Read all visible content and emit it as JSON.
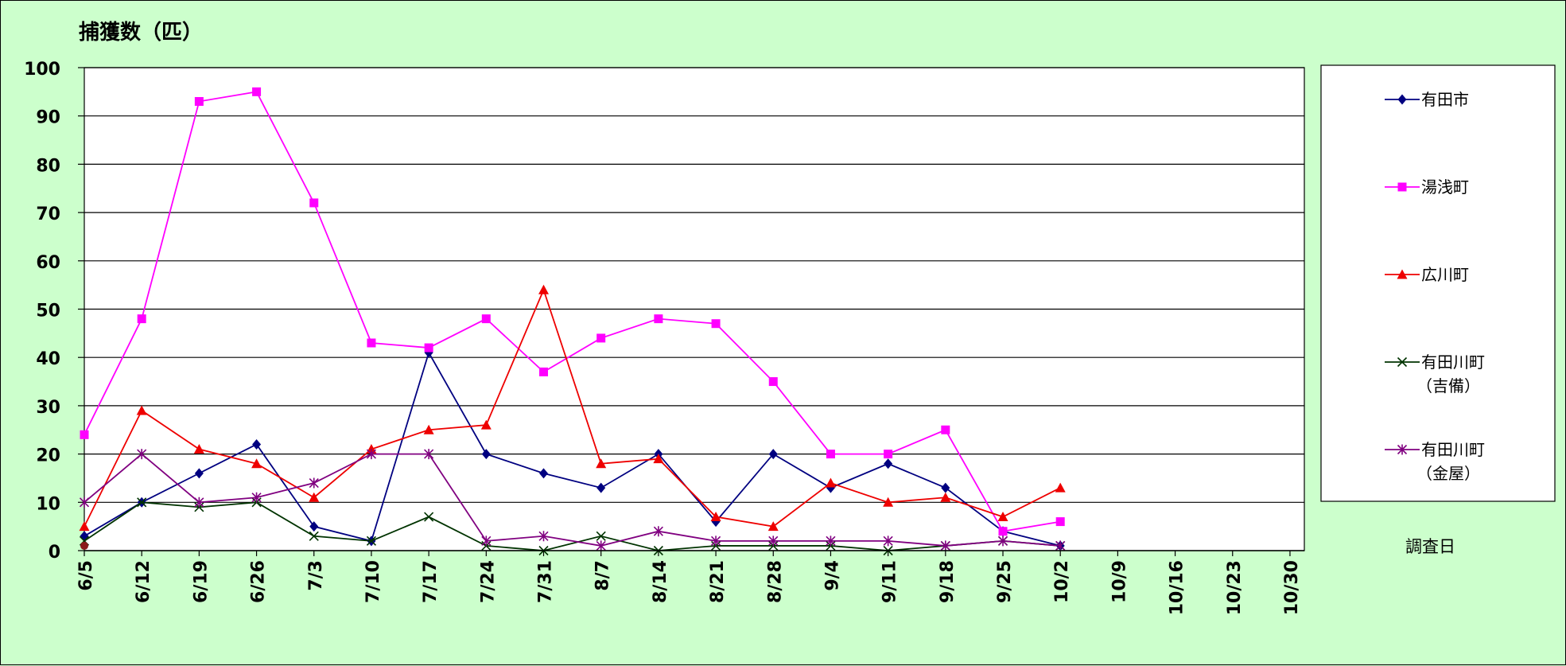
{
  "chart_data": {
    "type": "line",
    "ylabel": "捕獲数（匹）",
    "xlabel": "調査日",
    "ylim": [
      0,
      100
    ],
    "yticks": [
      0,
      10,
      20,
      30,
      40,
      50,
      60,
      70,
      80,
      90,
      100
    ],
    "categories": [
      "6/5",
      "6/12",
      "6/19",
      "6/26",
      "7/3",
      "7/10",
      "7/17",
      "7/24",
      "7/31",
      "8/7",
      "8/14",
      "8/21",
      "8/28",
      "9/4",
      "9/11",
      "9/18",
      "9/25",
      "10/2",
      "10/9",
      "10/16",
      "10/23",
      "10/30"
    ],
    "grid": true,
    "legend_position": "right",
    "series": [
      {
        "name": "有田市",
        "color": "#000080",
        "marker": "diamond",
        "values": [
          3,
          10,
          16,
          22,
          5,
          2,
          41,
          20,
          16,
          13,
          20,
          6,
          20,
          13,
          18,
          13,
          4,
          1,
          null,
          null,
          null,
          null
        ]
      },
      {
        "name": "湯浅町",
        "color": "#ff00ff",
        "marker": "square",
        "values": [
          24,
          48,
          93,
          95,
          72,
          43,
          42,
          48,
          37,
          44,
          48,
          47,
          35,
          20,
          20,
          25,
          4,
          6,
          null,
          null,
          null,
          null
        ]
      },
      {
        "name": "広川町",
        "color": "#ee0000",
        "marker": "triangle",
        "values": [
          5,
          29,
          21,
          18,
          11,
          21,
          25,
          26,
          54,
          18,
          19,
          7,
          5,
          14,
          10,
          11,
          7,
          13,
          null,
          null,
          null,
          null
        ]
      },
      {
        "name": "有田川町",
        "name_line2": "（吉備）",
        "color": "#003300",
        "marker": "x",
        "values": [
          2,
          10,
          9,
          10,
          3,
          2,
          7,
          1,
          0,
          3,
          0,
          1,
          1,
          1,
          0,
          1,
          2,
          1,
          null,
          null,
          null,
          null
        ]
      },
      {
        "name": "有田川町",
        "name_line2": "（金屋）",
        "color": "#800080",
        "marker": "star",
        "values": [
          10,
          20,
          10,
          11,
          14,
          20,
          20,
          2,
          3,
          1,
          4,
          2,
          2,
          2,
          2,
          1,
          2,
          1,
          null,
          null,
          null,
          null
        ]
      }
    ]
  }
}
